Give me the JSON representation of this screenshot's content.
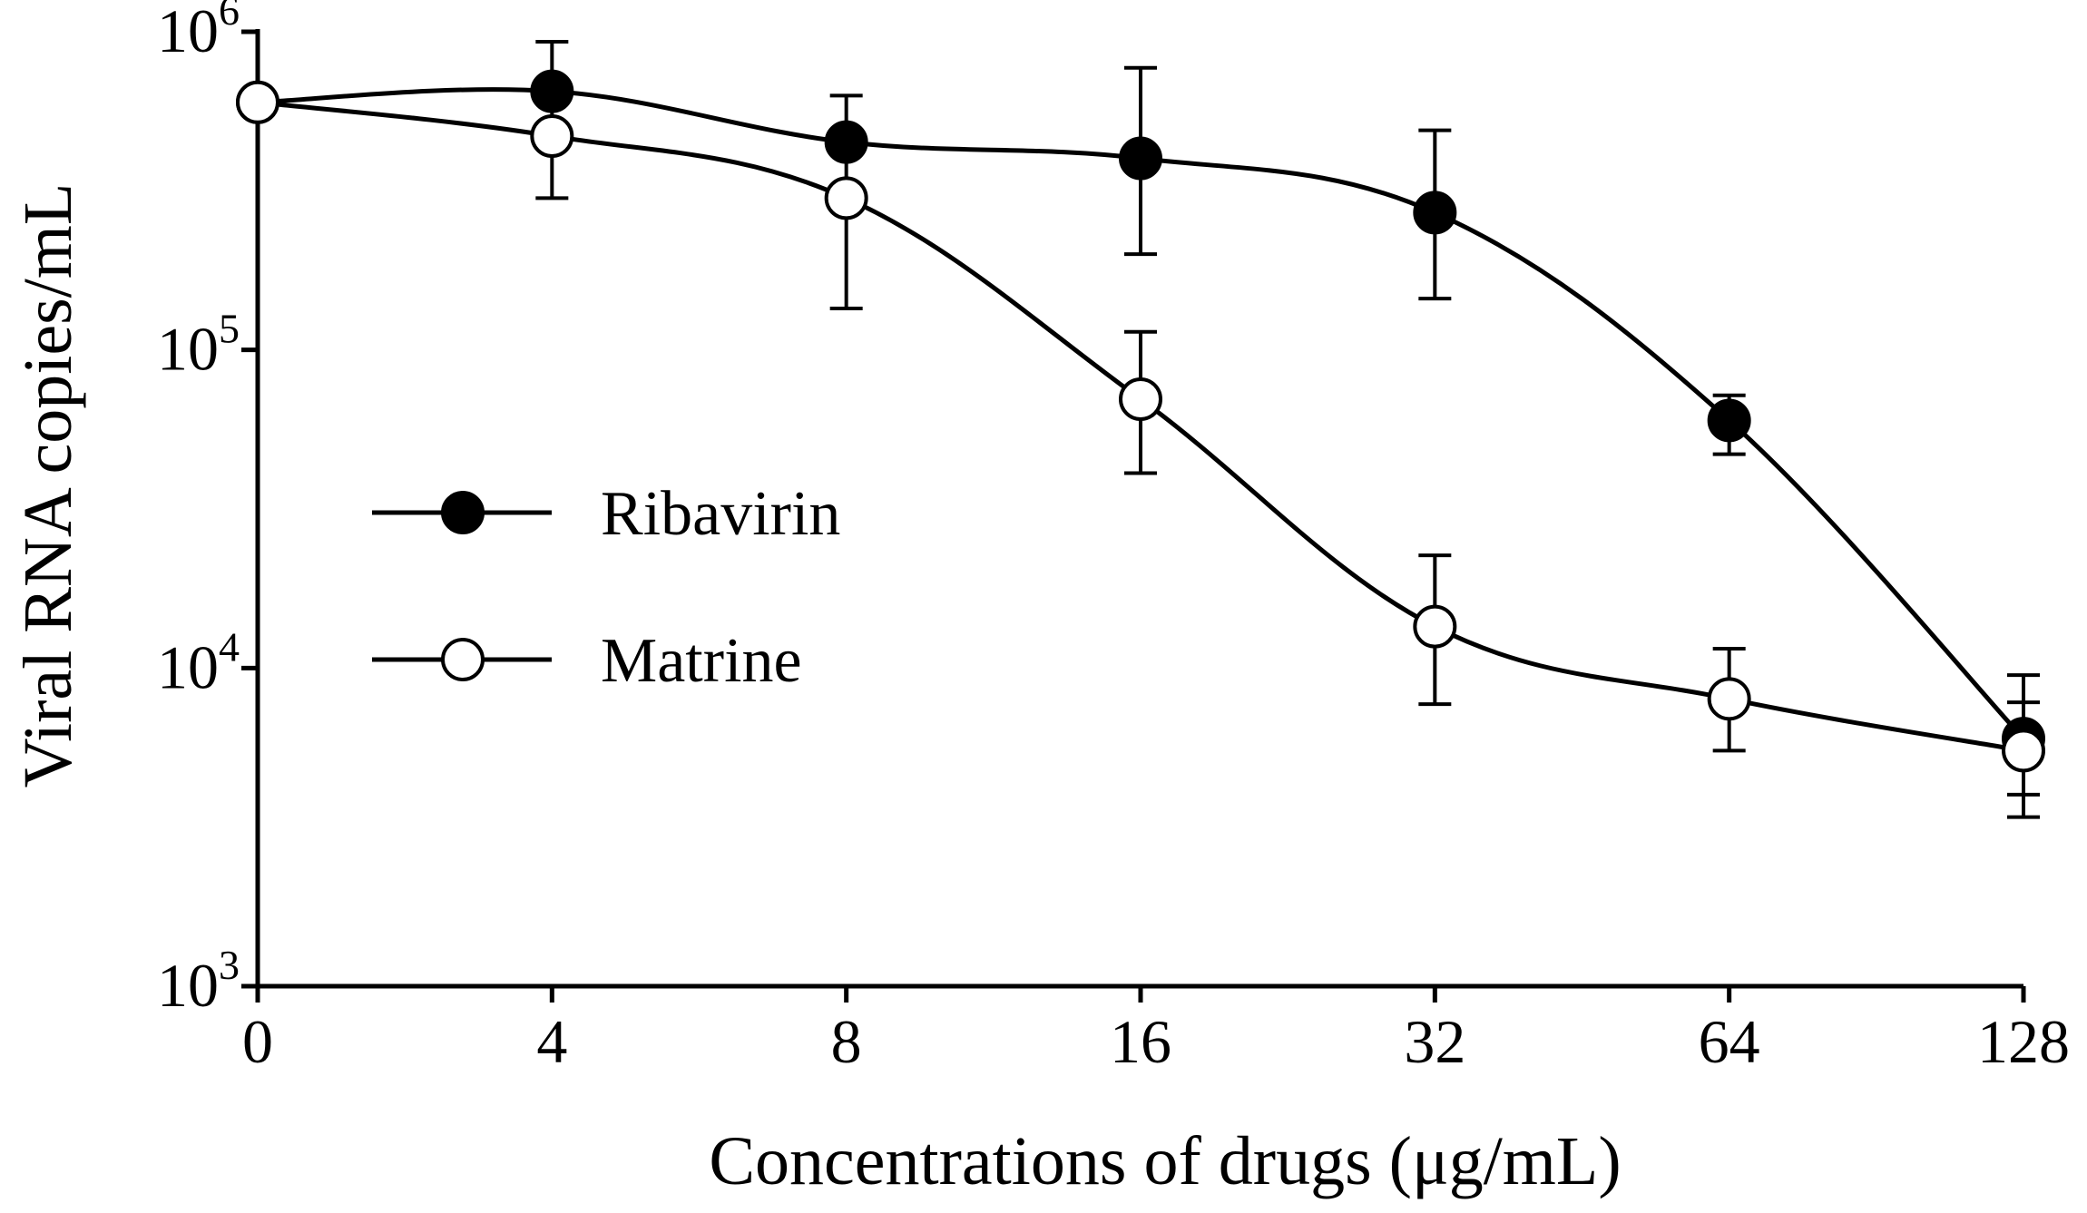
{
  "chart_data": {
    "type": "line",
    "xlabel": "Concentrations of drugs (μg/mL)",
    "ylabel": "Viral RNA copies/mL",
    "yscale": "log",
    "ylim": [
      1000,
      1000000
    ],
    "categories": [
      "0",
      "4",
      "8",
      "16",
      "32",
      "64",
      "128"
    ],
    "y_ticks": [
      {
        "base": "10",
        "exp": "3",
        "value": 1000
      },
      {
        "base": "10",
        "exp": "4",
        "value": 10000
      },
      {
        "base": "10",
        "exp": "5",
        "value": 100000
      },
      {
        "base": "10",
        "exp": "6",
        "value": 1000000
      }
    ],
    "grid": false,
    "legend_position": "center-left",
    "series": [
      {
        "name": "Ribavirin",
        "marker": "filled-circle",
        "color": "#000000",
        "values": [
          600000,
          650000,
          450000,
          400000,
          270000,
          60000,
          6000
        ],
        "error_low": [
          600000,
          450000,
          320000,
          200000,
          145000,
          47000,
          4000
        ],
        "error_high": [
          600000,
          930000,
          630000,
          770000,
          490000,
          72000,
          9500
        ]
      },
      {
        "name": "Matrine",
        "marker": "open-circle",
        "color": "#000000",
        "values": [
          600000,
          470000,
          300000,
          70000,
          13500,
          8000,
          5500
        ],
        "error_low": [
          600000,
          300000,
          135000,
          41000,
          7700,
          5500,
          3400
        ],
        "error_high": [
          600000,
          470000,
          300000,
          114000,
          22600,
          11500,
          7800
        ]
      }
    ]
  }
}
